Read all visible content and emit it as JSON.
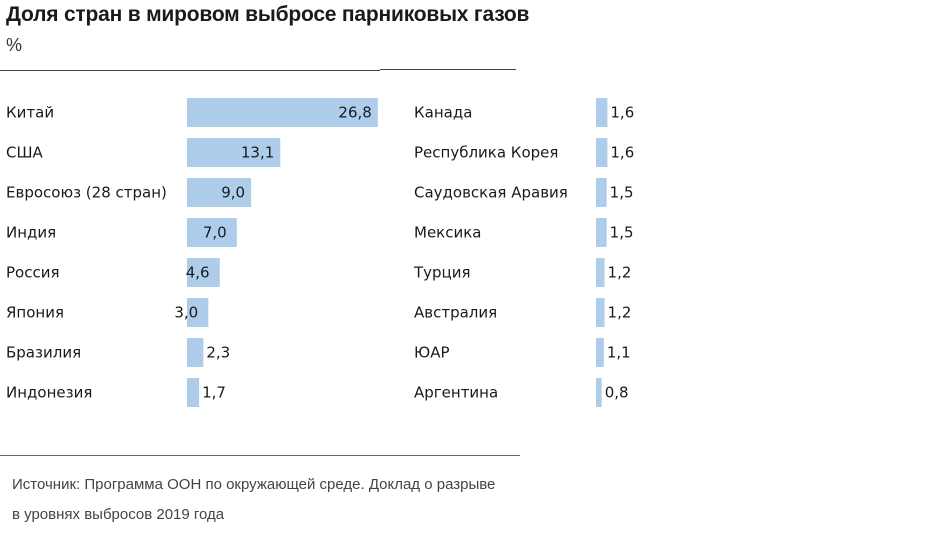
{
  "title": "Доля стран в мировом выбросе парниковых газов",
  "unit": "%",
  "source_line1": "Источник: Программа ООН по окружающей  среде. Доклад о разрыве",
  "source_line2": "в уровнях выбросов 2019 года",
  "colors": {
    "bar": "#aecdeb",
    "text": "#1a1a1a",
    "rule": "#444444"
  },
  "chart_data": {
    "type": "bar",
    "orientation": "horizontal",
    "unit": "%",
    "grid": false,
    "panels": [
      {
        "categories": [
          "Китай",
          "США",
          "Евросоюз (28 стран)",
          "Индия",
          "Россия",
          "Япония",
          "Бразилия",
          "Индонезия"
        ],
        "values": [
          26.8,
          13.1,
          9.0,
          7.0,
          4.6,
          3.0,
          2.3,
          1.7
        ],
        "value_labels": [
          "26,8",
          "13,1",
          "9,0",
          "7,0",
          "4,6",
          "3,0",
          "2,3",
          "1,7"
        ]
      },
      {
        "categories": [
          "Канада",
          "Республика Корея",
          "Саудовская Аравия",
          "Мексика",
          "Турция",
          "Австралия",
          "ЮАР",
          "Аргентина"
        ],
        "values": [
          1.6,
          1.6,
          1.5,
          1.5,
          1.2,
          1.2,
          1.1,
          0.8
        ],
        "value_labels": [
          "1,6",
          "1,6",
          "1,5",
          "1,5",
          "1,2",
          "1,2",
          "1,1",
          "0,8"
        ]
      }
    ]
  }
}
